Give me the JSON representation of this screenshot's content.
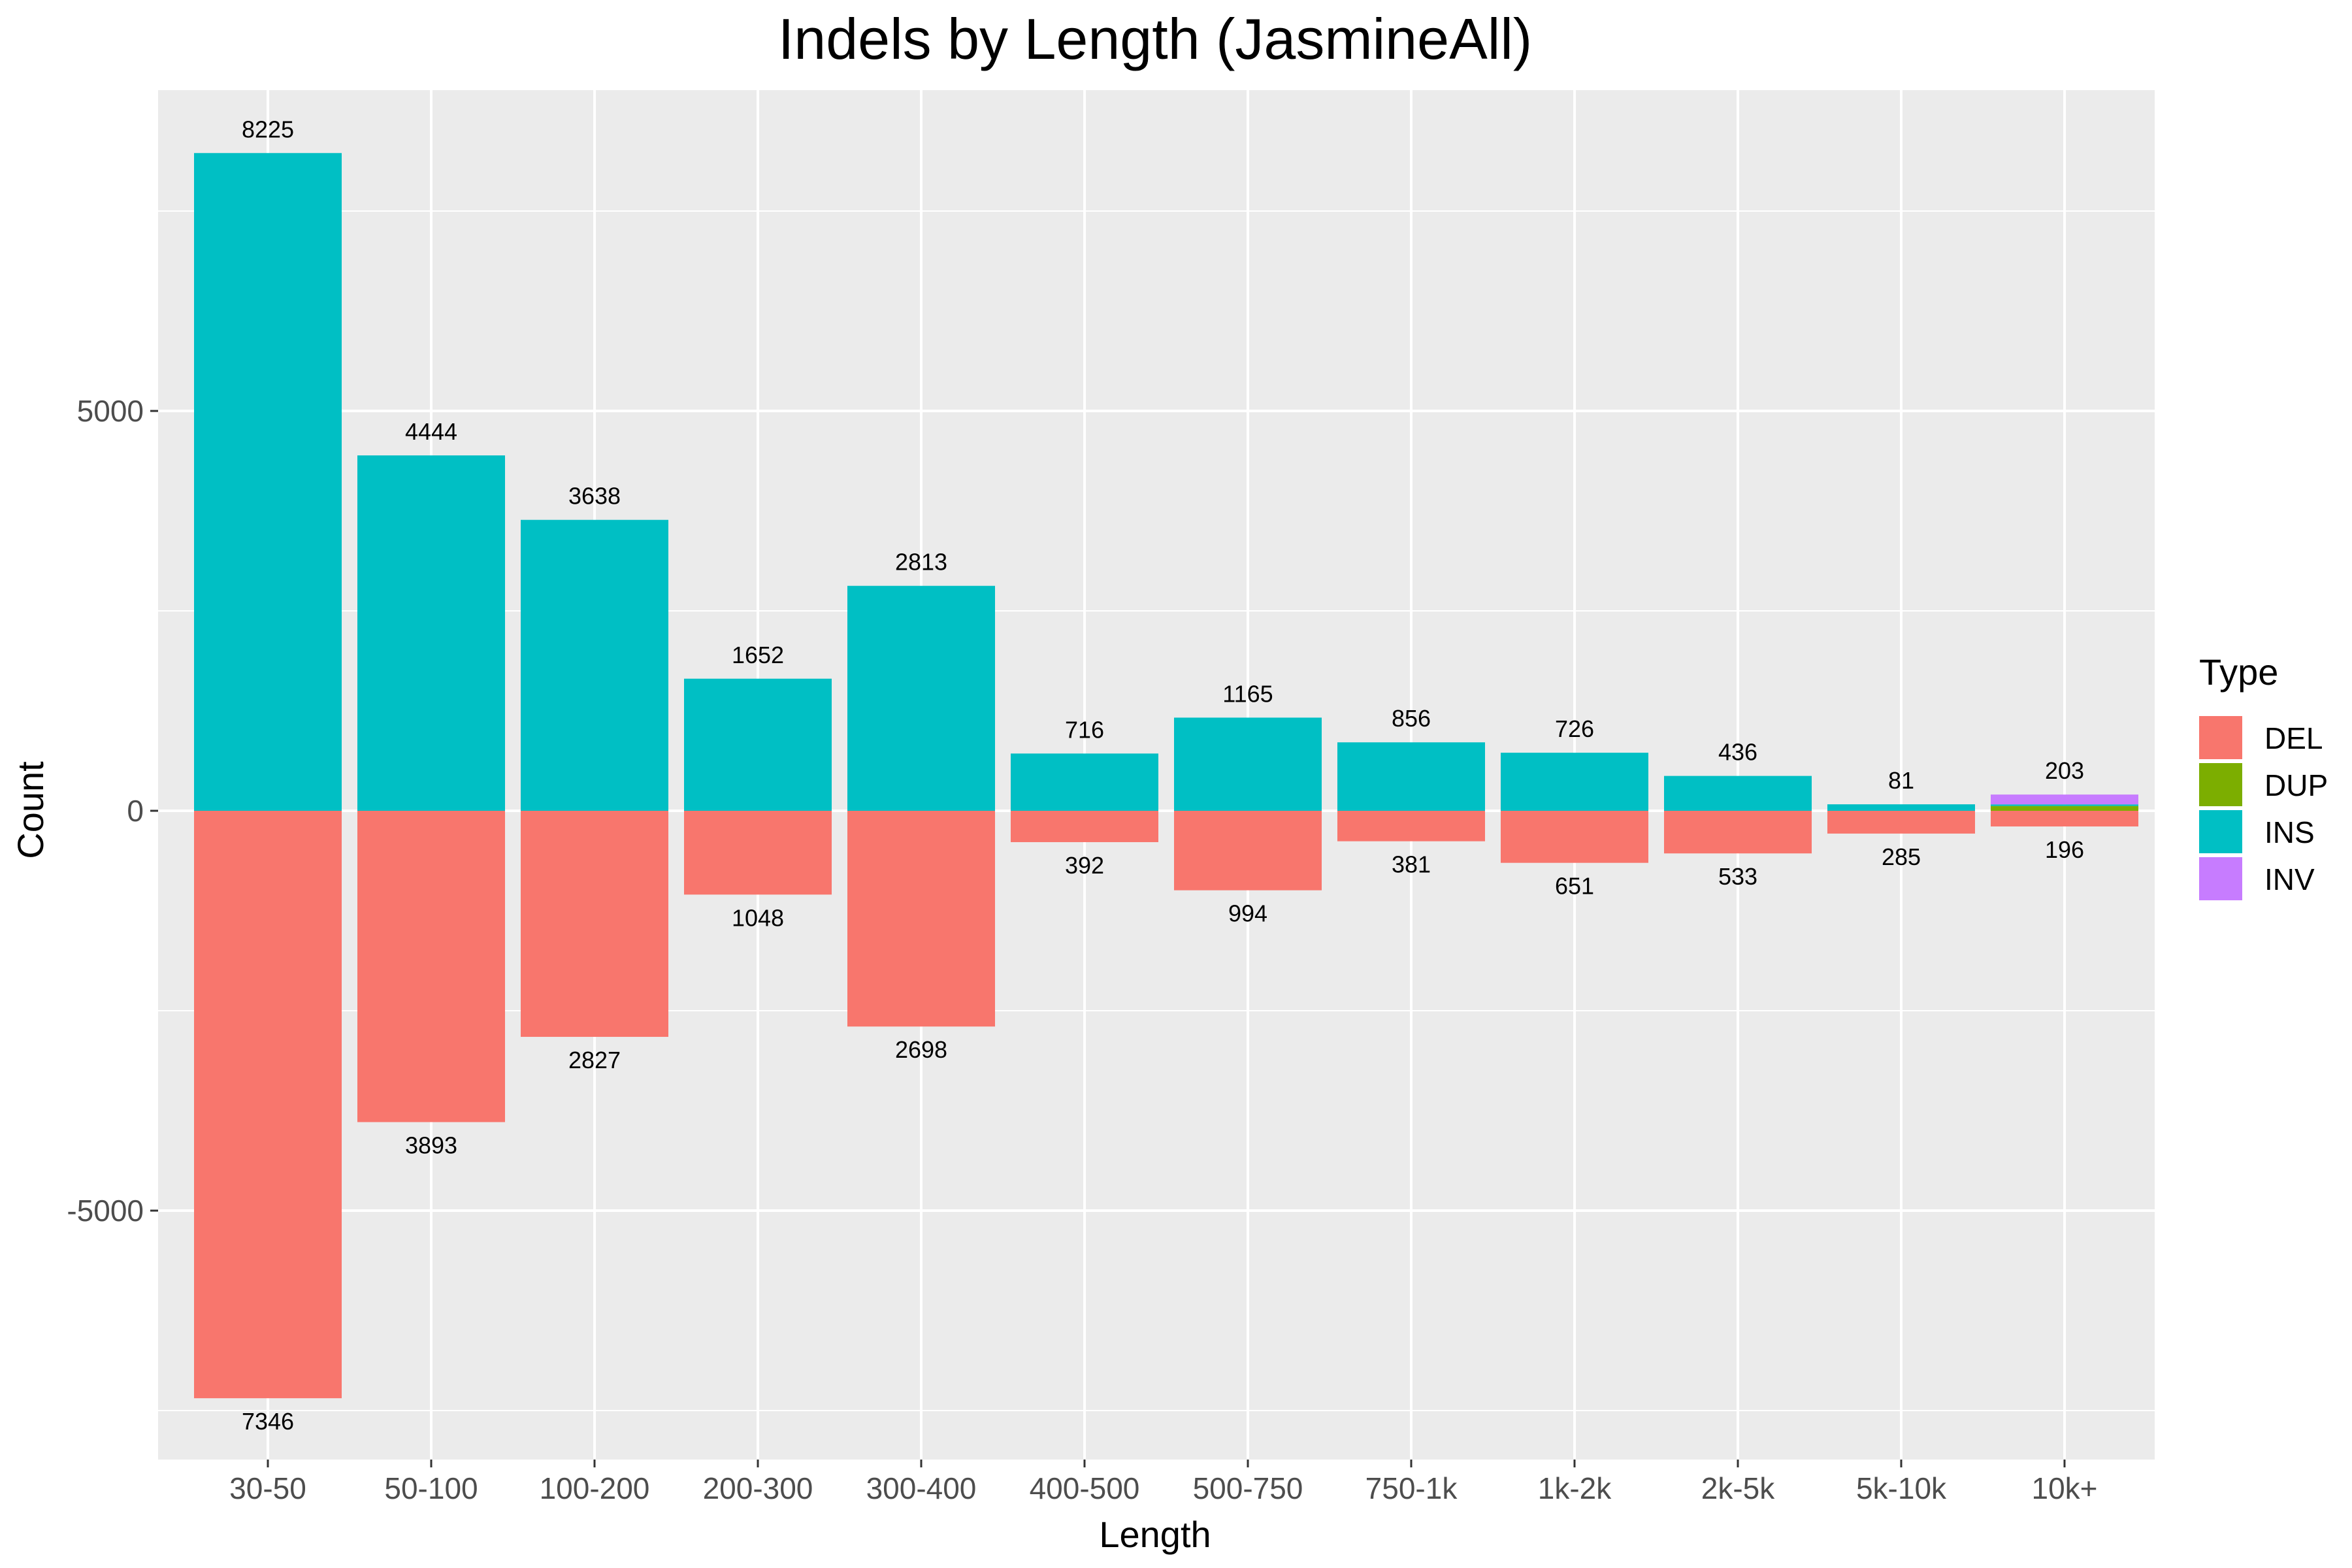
{
  "chart_data": {
    "type": "bar",
    "title": "Indels by Length (JasmineAll)",
    "xlabel": "Length",
    "ylabel": "Count",
    "categories": [
      "30-50",
      "50-100",
      "100-200",
      "200-300",
      "300-400",
      "400-500",
      "500-750",
      "750-1k",
      "1k-2k",
      "2k-5k",
      "5k-10k",
      "10k+"
    ],
    "series": [
      {
        "name": "DEL",
        "color": "#F8766D",
        "values": [
          -7346,
          -3893,
          -2827,
          -1048,
          -2698,
          -392,
          -994,
          -381,
          -651,
          -533,
          -285,
          -196
        ]
      },
      {
        "name": "DUP",
        "color": "#7CAE00",
        "values": [
          0,
          0,
          0,
          0,
          0,
          0,
          0,
          0,
          0,
          0,
          0,
          60
        ]
      },
      {
        "name": "INS",
        "color": "#00BFC4",
        "values": [
          8225,
          4444,
          3638,
          1652,
          2813,
          716,
          1165,
          856,
          726,
          436,
          81,
          20
        ]
      },
      {
        "name": "INV",
        "color": "#C77CFF",
        "values": [
          0,
          0,
          0,
          0,
          0,
          0,
          0,
          0,
          0,
          0,
          0,
          123
        ]
      }
    ],
    "top_labels": [
      "8225",
      "4444",
      "3638",
      "1652",
      "2813",
      "716",
      "1165",
      "856",
      "726",
      "436",
      "81",
      "203"
    ],
    "bottom_labels": [
      "7346",
      "3893",
      "2827",
      "1048",
      "2698",
      "392",
      "994",
      "381",
      "651",
      "533",
      "285",
      "196"
    ],
    "yticks": [
      -5000,
      0,
      5000
    ],
    "ytick_labels": [
      "-5000",
      "0",
      "5000"
    ],
    "ylim": [
      -8000,
      9000
    ],
    "grid": true,
    "panel_background": "#EBEBEB",
    "grid_color": "#FFFFFF",
    "legend": {
      "title": "Type",
      "placement": "right",
      "items": [
        "DEL",
        "DUP",
        "INS",
        "INV"
      ]
    }
  }
}
